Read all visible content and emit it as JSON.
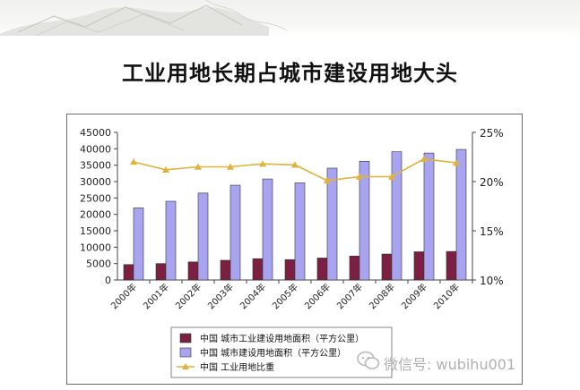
{
  "slide": {
    "title": "工业用地长期占城市建设用地大头"
  },
  "chart_data": {
    "type": "bar",
    "categories": [
      "2000年",
      "2001年",
      "2002年",
      "2003年",
      "2004年",
      "2005年",
      "2006年",
      "2007年",
      "2008年",
      "2009年",
      "2010年"
    ],
    "series": [
      {
        "name": "中国  城市工业建设用地面积（平方公里）",
        "kind": "bar",
        "axis": "left",
        "color": "#7b2042",
        "values": [
          4700,
          5000,
          5500,
          6000,
          6500,
          6200,
          6700,
          7300,
          7900,
          8600,
          8700
        ]
      },
      {
        "name": "中国  城市建设用地面积（平方公里）",
        "kind": "bar",
        "axis": "left",
        "color": "#a8a4f0",
        "values": [
          22000,
          24000,
          26500,
          28900,
          30800,
          29600,
          34100,
          36200,
          39100,
          38700,
          39800
        ]
      },
      {
        "name": "中国  工业用地比重",
        "kind": "line",
        "axis": "right",
        "color": "#e1b23a",
        "values": [
          22.0,
          21.2,
          21.5,
          21.5,
          21.8,
          21.7,
          20.1,
          20.5,
          20.5,
          22.3,
          21.9
        ]
      }
    ],
    "y_left": {
      "min": 0,
      "max": 45000,
      "ticks": [
        "0",
        "5000",
        "10000",
        "15000",
        "20000",
        "25000",
        "30000",
        "35000",
        "40000",
        "45000"
      ]
    },
    "y_right": {
      "min": 10,
      "max": 25,
      "ticks": [
        "10%",
        "15%",
        "20%",
        "25%"
      ]
    },
    "legend_position": "bottom",
    "grid": false
  },
  "watermark": {
    "text": "微信号: wubihu001",
    "icon": "wechat-icon"
  }
}
